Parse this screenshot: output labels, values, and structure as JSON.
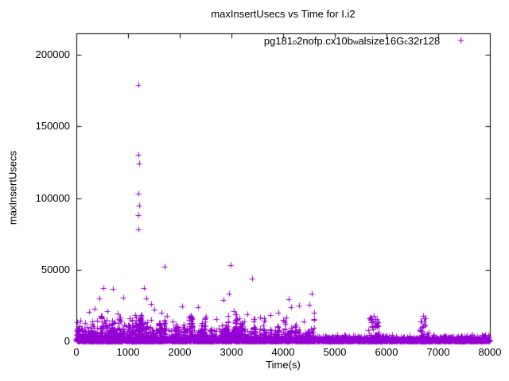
{
  "chart_data": {
    "type": "scatter",
    "title": "maxInsertUsecs vs Time for I.i2",
    "xlabel": "Time(s)",
    "ylabel": "maxInsertUsecs",
    "xlim": [
      0,
      8000
    ],
    "ylim": [
      0,
      215000
    ],
    "grid": false,
    "marker": "plus",
    "color": "#9400d3",
    "xticks": [
      0,
      1000,
      2000,
      3000,
      4000,
      5000,
      6000,
      7000,
      8000
    ],
    "xtick_labels": [
      "0",
      "1000",
      "2000",
      "3000",
      "4000",
      "5000",
      "6000",
      "7000",
      "8000"
    ],
    "yticks": [
      0,
      50000,
      100000,
      150000,
      200000
    ],
    "ytick_labels": [
      "0",
      "50000",
      "100000",
      "150000",
      "200000"
    ],
    "legend": {
      "position": "top-right-inside",
      "marker": "+",
      "full_name": "pg181_o2nofp.cx10b_walsize16G_c32r128",
      "parts": [
        {
          "text": "pg181",
          "sub": false
        },
        {
          "text": "o",
          "sub": true
        },
        {
          "text": "2nofp.cx10b",
          "sub": false
        },
        {
          "text": "w",
          "sub": true
        },
        {
          "text": "alsize16G",
          "sub": false
        },
        {
          "text": "c",
          "sub": true
        },
        {
          "text": "32r128",
          "sub": false
        }
      ]
    },
    "series": [
      {
        "name": "pg181_o2nofp.cx10b_walsize16G_c32r128",
        "outliers": [
          [
            1200,
            179000
          ],
          [
            1205,
            130000
          ],
          [
            1210,
            124000
          ],
          [
            1200,
            103000
          ],
          [
            1215,
            95000
          ],
          [
            1205,
            88000
          ],
          [
            1195,
            78000
          ],
          [
            1700,
            52000
          ],
          [
            2980,
            53000
          ],
          [
            3400,
            44000
          ],
          [
            520,
            37000
          ],
          [
            700,
            36500
          ],
          [
            1300,
            37000
          ],
          [
            450,
            30000
          ],
          [
            900,
            30500
          ],
          [
            350,
            22500
          ],
          [
            250,
            20500
          ],
          [
            600,
            21000
          ],
          [
            800,
            19500
          ],
          [
            1350,
            30000
          ],
          [
            1450,
            26000
          ],
          [
            1500,
            22000
          ],
          [
            1650,
            20000
          ],
          [
            1750,
            18000
          ],
          [
            2050,
            24500
          ],
          [
            2200,
            16000
          ],
          [
            2350,
            24000
          ],
          [
            2500,
            17000
          ],
          [
            2700,
            15500
          ],
          [
            2850,
            29000
          ],
          [
            2950,
            33000
          ],
          [
            3050,
            21000
          ],
          [
            3150,
            16000
          ],
          [
            3250,
            14000
          ],
          [
            3300,
            19000
          ],
          [
            3550,
            16500
          ],
          [
            3650,
            14500
          ],
          [
            3750,
            18500
          ],
          [
            3900,
            20000
          ],
          [
            4000,
            15000
          ],
          [
            4100,
            29500
          ],
          [
            4150,
            24000
          ],
          [
            4300,
            25000
          ],
          [
            4400,
            14000
          ],
          [
            4500,
            25500
          ],
          [
            4550,
            33500
          ],
          [
            4600,
            20000
          ],
          [
            5700,
            13500
          ],
          [
            5750,
            17500
          ],
          [
            5800,
            11000
          ],
          [
            6700,
            17500
          ],
          [
            6720,
            14000
          ],
          [
            6760,
            11500
          ]
        ],
        "noise_bands": [
          {
            "x0": 0,
            "x1": 8000,
            "count": 2500,
            "ymax": 1500,
            "pow": 1
          },
          {
            "x0": 0,
            "x1": 8000,
            "count": 1200,
            "ymax": 3200,
            "pow": 2
          },
          {
            "x0": 0,
            "x1": 4600,
            "count": 700,
            "ymax": 9000,
            "pow": 2.5
          },
          {
            "x0": 0,
            "x1": 1500,
            "count": 220,
            "ymax": 15000,
            "pow": 2.2
          },
          {
            "x0": 4600,
            "x1": 8000,
            "count": 350,
            "ymax": 4500,
            "pow": 3
          },
          {
            "x0": 5650,
            "x1": 5850,
            "count": 45,
            "ymax": 17000,
            "pow": 2
          },
          {
            "x0": 6650,
            "x1": 6820,
            "count": 40,
            "ymax": 17000,
            "pow": 2
          }
        ],
        "noise_columns": {
          "x0": 30,
          "x1": 4600,
          "columns": 70,
          "pts_min": 6,
          "pts_max": 16,
          "ymax_min": 4000,
          "ymax_max": 20000
        }
      }
    ]
  }
}
